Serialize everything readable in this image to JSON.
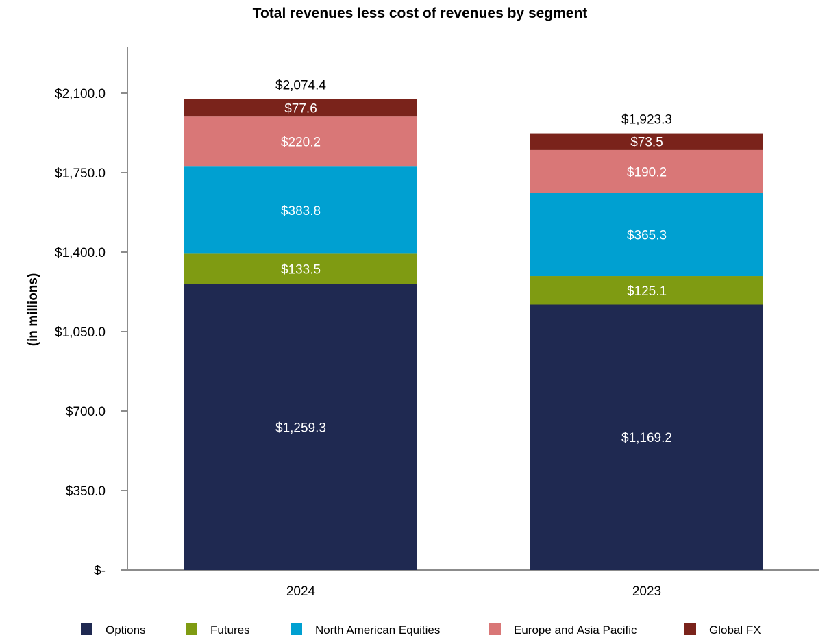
{
  "chart_data": {
    "type": "bar",
    "stacked": true,
    "title": "Total revenues less cost of revenues by segment",
    "ylabel": "(in millions)",
    "xlabel": "",
    "categories": [
      "2024",
      "2023"
    ],
    "ylim": [
      0,
      2300
    ],
    "yticks": [
      0,
      350,
      700,
      1050,
      1400,
      1750,
      2100
    ],
    "ytick_labels": [
      "$-",
      "$350.0",
      "$700.0",
      "$1,050.0",
      "$1,400.0",
      "$1,750.0",
      "$2,100.0"
    ],
    "series": [
      {
        "name": "Options",
        "color": "#1f2951",
        "values": [
          1259.3,
          1169.2
        ],
        "labels": [
          "$1,259.3",
          "$1,169.2"
        ]
      },
      {
        "name": "Futures",
        "color": "#7f9b12",
        "values": [
          133.5,
          125.1
        ],
        "labels": [
          "$133.5",
          "$125.1"
        ]
      },
      {
        "name": "North American Equities",
        "color": "#00a0d1",
        "values": [
          383.8,
          365.3
        ],
        "labels": [
          "$383.8",
          "$365.3"
        ]
      },
      {
        "name": "Europe and Asia Pacific",
        "color": "#d97777",
        "values": [
          220.2,
          190.2
        ],
        "labels": [
          "$220.2",
          "$190.2"
        ]
      },
      {
        "name": "Global FX",
        "color": "#7a231b",
        "values": [
          77.6,
          73.5
        ],
        "labels": [
          "$77.6",
          "$73.5"
        ]
      }
    ],
    "totals": [
      2074.4,
      1923.3
    ],
    "total_labels": [
      "$2,074.4",
      "$1,923.3"
    ],
    "legend_position": "bottom",
    "grid": false
  }
}
